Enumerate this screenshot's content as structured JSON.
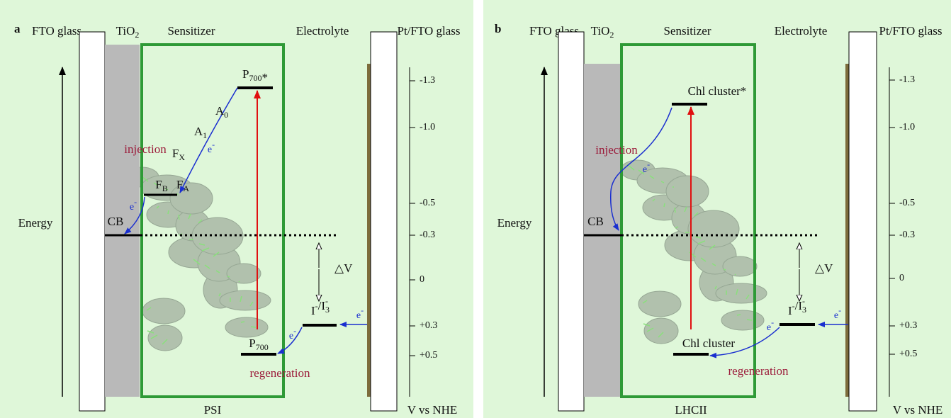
{
  "panels": [
    {
      "letter": "a",
      "headers": {
        "fto": "FTO glass",
        "tio2": [
          {
            "base": "TiO",
            "sub": "2"
          }
        ],
        "sensitizer": "Sensitizer",
        "electrolyte": "Electrolyte",
        "pt": "Pt/FTO glass"
      },
      "energy": "Energy",
      "cb": "CB",
      "scale_ticks": [
        "-1.3",
        "-1.0",
        "-0.5",
        "-0.3",
        "0",
        "+0.3",
        "+0.5"
      ],
      "scale_label": "V vs NHE",
      "component": "PSI",
      "delta_v": "△V",
      "redox": [
        {
          "base": "I",
          "sup": "-"
        },
        {
          "base": "/I",
          "sub": "3",
          "sup": "-"
        }
      ],
      "injection": "injection",
      "regeneration": "regeneration",
      "excited": [
        {
          "base": "P",
          "sub": "700"
        },
        {
          "base": "*"
        }
      ],
      "ground": [
        {
          "base": "P",
          "sub": "700"
        }
      ],
      "intermediates": [
        [
          {
            "base": "A",
            "sub": "0"
          }
        ],
        [
          {
            "base": "A",
            "sub": "1"
          }
        ],
        [
          {
            "base": "F",
            "sub": "X"
          }
        ],
        [
          {
            "base": "F",
            "sub": "B"
          }
        ],
        [
          {
            "base": "F",
            "sub": "A"
          }
        ]
      ],
      "electrons": [
        [
          {
            "base": "e",
            "sup": "-"
          }
        ],
        [
          {
            "base": "e",
            "sup": "-"
          }
        ],
        [
          {
            "base": "e",
            "sup": "-"
          }
        ],
        [
          {
            "base": "e",
            "sup": "-"
          }
        ]
      ]
    },
    {
      "letter": "b",
      "headers": {
        "fto": "FTO glass",
        "tio2": [
          {
            "base": "TiO",
            "sub": "2"
          }
        ],
        "sensitizer": "Sensitizer",
        "electrolyte": "Electrolyte",
        "pt": "Pt/FTO glass"
      },
      "energy": "Energy",
      "cb": "CB",
      "scale_ticks": [
        "-1.3",
        "-1.0",
        "-0.5",
        "-0.3",
        "0",
        "+0.3",
        "+0.5"
      ],
      "scale_label": "V vs NHE",
      "component": "LHCII",
      "delta_v": "△V",
      "redox": [
        {
          "base": "I",
          "sup": "-"
        },
        {
          "base": "/I",
          "sub": "3",
          "sup": "-"
        }
      ],
      "injection": "injection",
      "regeneration": "regeneration",
      "excited": "Chl cluster*",
      "ground": "Chl cluster",
      "electrons": [
        [
          {
            "base": "e",
            "sup": "-"
          }
        ],
        [
          {
            "base": "e",
            "sup": "-"
          }
        ],
        [
          {
            "base": "e",
            "sup": "-"
          }
        ]
      ]
    }
  ]
}
